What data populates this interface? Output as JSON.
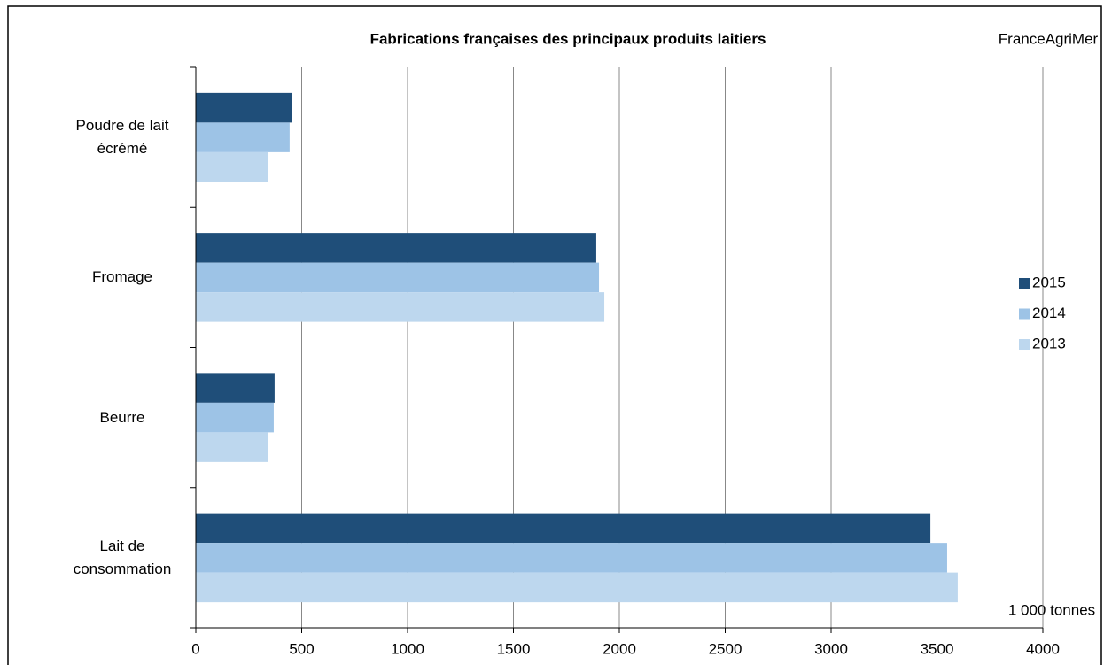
{
  "chart_data": {
    "type": "bar",
    "orientation": "horizontal",
    "title": "Fabrications françaises des principaux produits laitiers",
    "source": "FranceAgriMer",
    "annotation": "1 000 tonnes",
    "categories": [
      "Poudre de lait écrémé",
      "Fromage",
      "Beurre",
      "Lait de consommation"
    ],
    "series": [
      {
        "name": "2015",
        "color": "#1f4e79",
        "values": [
          456,
          1891,
          372,
          3469
        ]
      },
      {
        "name": "2014",
        "color": "#9dc3e6",
        "values": [
          443,
          1904,
          368,
          3548
        ]
      },
      {
        "name": "2013",
        "color": "#bdd7ee",
        "values": [
          339,
          1929,
          343,
          3598
        ]
      }
    ],
    "xlim": [
      0,
      4000
    ],
    "xticks": [
      0,
      500,
      1000,
      1500,
      2000,
      2500,
      3000,
      3500,
      4000
    ],
    "grid": true,
    "legend": "right"
  }
}
